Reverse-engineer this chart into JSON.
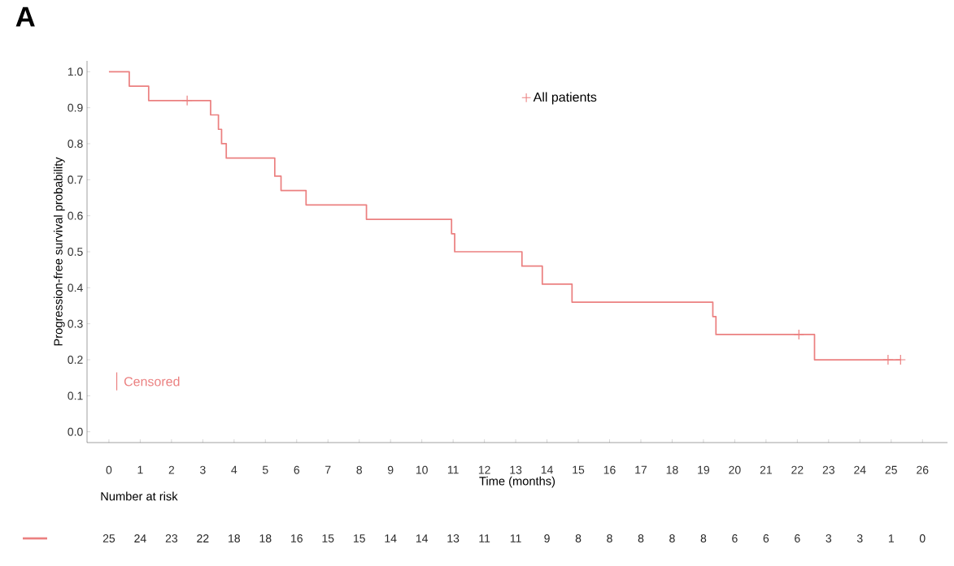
{
  "chart_data": {
    "type": "step",
    "title": "A",
    "xlabel": "Time (months)",
    "ylabel": "Progression-free survival probability",
    "xlim": [
      -0.7,
      26.8
    ],
    "ylim": [
      -0.03,
      1.03
    ],
    "xticks": [
      0,
      1,
      2,
      3,
      4,
      5,
      6,
      7,
      8,
      9,
      10,
      11,
      12,
      13,
      14,
      15,
      16,
      17,
      18,
      19,
      20,
      21,
      22,
      23,
      24,
      25,
      26
    ],
    "yticks": [
      {
        "value": 0,
        "label": "0.0"
      },
      0.1,
      0.2,
      0.3,
      0.4,
      0.5,
      0.6,
      0.7,
      0.8,
      0.9,
      {
        "value": 1,
        "label": "1.0"
      }
    ],
    "series": [
      {
        "name": "All patients",
        "color": "#eb8080",
        "x": [
          0,
          0.65,
          1.27,
          3.25,
          3.5,
          3.6,
          3.75,
          5.3,
          5.5,
          6.3,
          8.23,
          10.95,
          11.05,
          13.2,
          13.85,
          14.8,
          19.3,
          19.4,
          22.55,
          25.3
        ],
        "values": [
          1.0,
          0.96,
          0.92,
          0.88,
          0.84,
          0.8,
          0.76,
          0.71,
          0.67,
          0.63,
          0.59,
          0.55,
          0.5,
          0.46,
          0.41,
          0.36,
          0.32,
          0.27,
          0.2,
          0.2
        ]
      },
      {
        "name": "Censored",
        "type": "scatter",
        "marker": "cross",
        "color": "#eb8080",
        "x": [
          2.5,
          22.05,
          24.9,
          25.3
        ],
        "values": [
          0.92,
          0.27,
          0.2,
          0.2
        ]
      }
    ],
    "legend": "top",
    "annotations": [
      "Number at risk",
      "25",
      "24",
      "23",
      "22",
      "18",
      "18",
      "16",
      "15",
      "15",
      "14",
      "14",
      "13",
      "11",
      "11",
      "9",
      "8",
      "8",
      "8",
      "8",
      "8",
      "6",
      "6",
      "6",
      "3",
      "3",
      "1",
      "0"
    ]
  }
}
